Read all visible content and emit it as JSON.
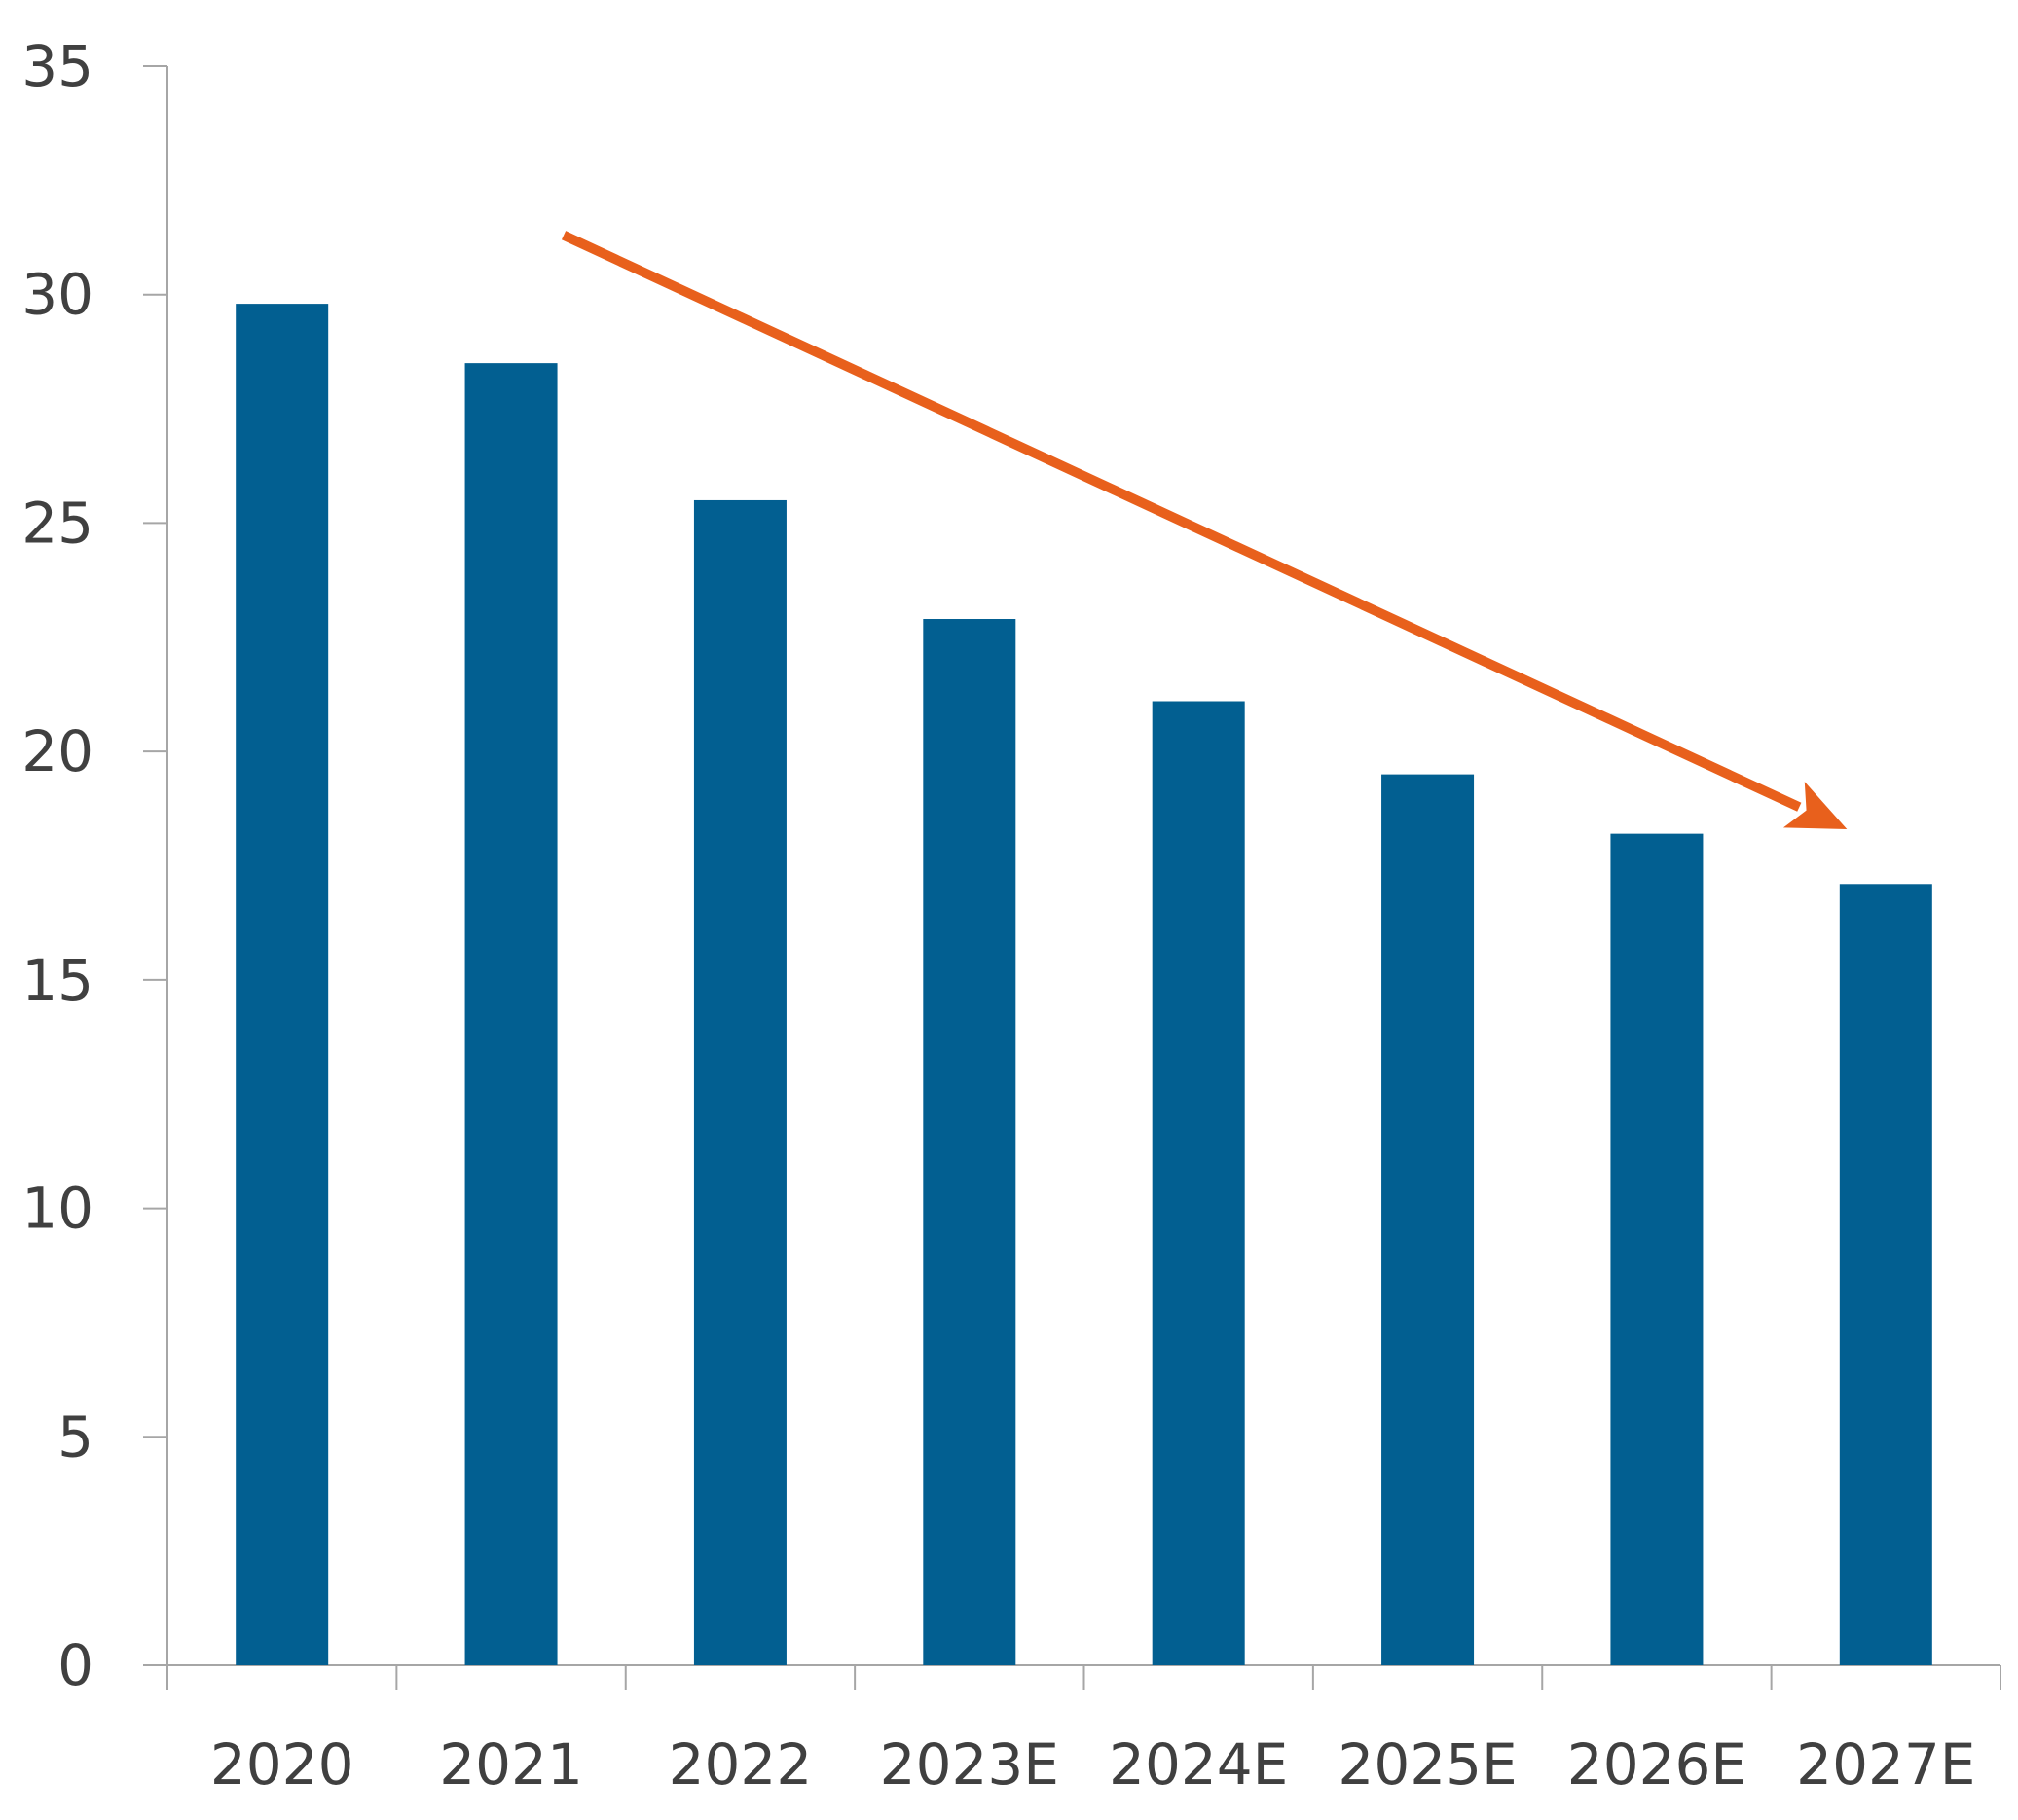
{
  "chart_data": {
    "type": "bar",
    "title": "",
    "xlabel": "",
    "ylabel": "",
    "categories": [
      "2020",
      "2021",
      "2022",
      "2023E",
      "2024E",
      "2025E",
      "2026E",
      "2027E"
    ],
    "values": [
      29.8,
      28.5,
      25.5,
      22.9,
      21.1,
      19.5,
      18.2,
      17.1
    ],
    "ylim": [
      0,
      35
    ],
    "yticks": [
      "0",
      "5",
      "10",
      "15",
      "20",
      "25",
      "30",
      "35"
    ],
    "grid": false,
    "legend": "none",
    "colors": {
      "bar": "#025f91",
      "trend_arrow": "#e8601c",
      "axis": "#a6a6a6",
      "tick_text": "#404040"
    },
    "annotations": [
      {
        "type": "arrow",
        "meaning": "downward trend",
        "from": {
          "category": "2021",
          "value": 31.3
        },
        "to": {
          "category": "2027E",
          "value": 18.3
        }
      }
    ]
  }
}
